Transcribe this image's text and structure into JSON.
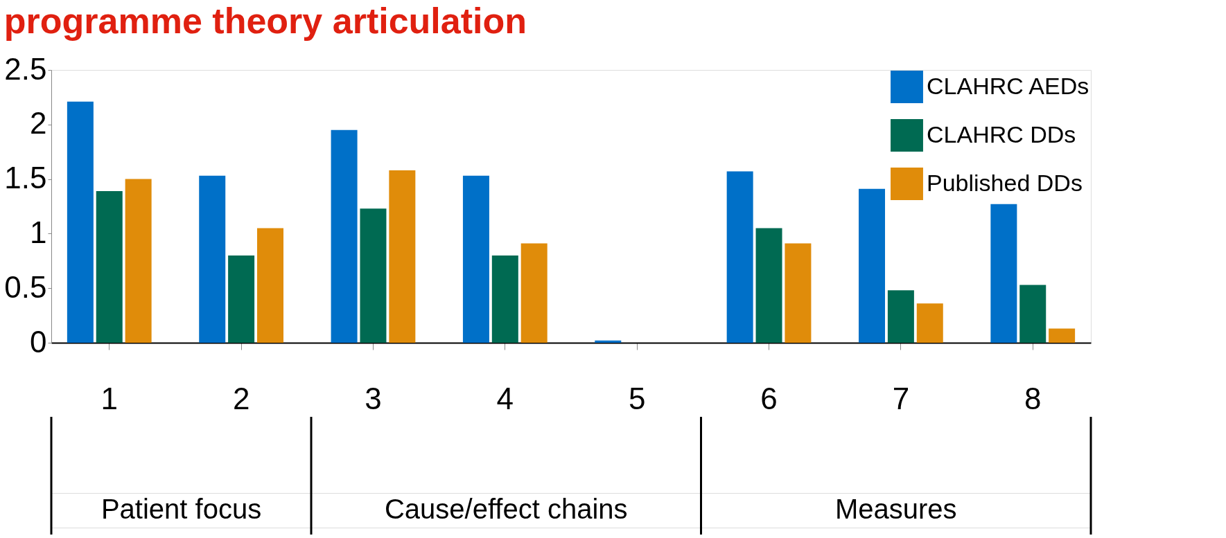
{
  "chart_data": {
    "type": "bar",
    "title": "programme theory articulation",
    "categories": [
      "1",
      "2",
      "3",
      "4",
      "5",
      "6",
      "7",
      "8"
    ],
    "series": [
      {
        "name": "CLAHRC AEDs",
        "color": "#0070c8",
        "values": [
          2.21,
          1.53,
          1.95,
          1.53,
          0.02,
          1.57,
          1.41,
          1.27
        ]
      },
      {
        "name": "CLAHRC DDs",
        "color": "#006a52",
        "values": [
          1.39,
          0.8,
          1.23,
          0.8,
          0,
          1.05,
          0.48,
          0.53
        ]
      },
      {
        "name": "Published DDs",
        "color": "#e08c0a",
        "values": [
          1.5,
          1.05,
          1.58,
          0.91,
          0,
          0.91,
          0.36,
          0.13
        ]
      }
    ],
    "ylim": [
      0,
      2.5
    ],
    "yticks": [
      0,
      0.5,
      1,
      1.5,
      2,
      2.5
    ],
    "grid": false,
    "legend": "top right",
    "annotations": [
      "Patient focus",
      "Cause/effect chains",
      "Measures"
    ]
  }
}
